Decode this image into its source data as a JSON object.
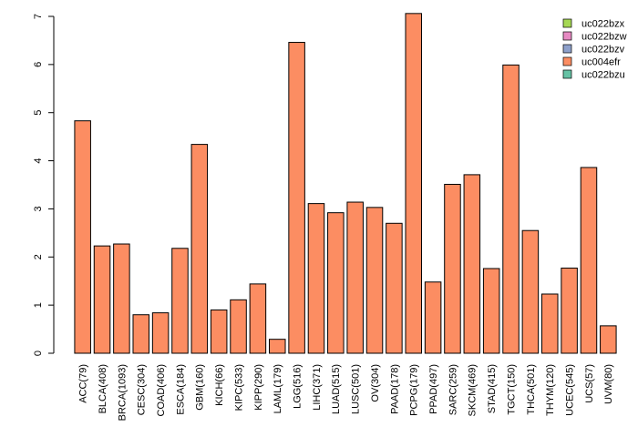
{
  "chart_data": {
    "type": "bar",
    "title": "",
    "xlabel": "",
    "ylabel": "",
    "ylim": [
      0,
      7
    ],
    "yticks": [
      0,
      1,
      2,
      3,
      4,
      5,
      6,
      7
    ],
    "grid": false,
    "legend_position": "top-right",
    "categories": [
      "ACC(79)",
      "BLCA(408)",
      "BRCA(1093)",
      "CESC(304)",
      "COAD(406)",
      "ESCA(184)",
      "GBM(160)",
      "KICH(66)",
      "KIPC(533)",
      "KIPP(290)",
      "LAML(179)",
      "LGG(516)",
      "LIHC(371)",
      "LUAD(515)",
      "LUSC(501)",
      "OV(304)",
      "PAAD(178)",
      "PCPG(179)",
      "PPAD(497)",
      "SARC(259)",
      "SKCM(469)",
      "STAD(415)",
      "TGCT(150)",
      "THCA(501)",
      "THYM(120)",
      "UCEC(545)",
      "UCS(57)",
      "UVM(80)"
    ],
    "series": [
      {
        "name": "uc022bzx",
        "color": "#a6d854",
        "values": [
          0,
          0,
          0,
          0,
          0,
          0,
          0,
          0,
          0,
          0,
          0,
          0,
          0,
          0,
          0,
          0,
          0,
          0,
          0,
          0,
          0,
          0,
          0,
          0,
          0,
          0,
          0,
          0
        ]
      },
      {
        "name": "uc022bzw",
        "color": "#e78ac3",
        "values": [
          0,
          0,
          0,
          0,
          0,
          0,
          0,
          0,
          0,
          0,
          0,
          0,
          0,
          0,
          0,
          0,
          0,
          0,
          0,
          0,
          0,
          0,
          0,
          0,
          0,
          0,
          0,
          0
        ]
      },
      {
        "name": "uc022bzv",
        "color": "#8da0cb",
        "values": [
          0,
          0,
          0,
          0,
          0,
          0,
          0,
          0,
          0,
          0,
          0,
          0,
          0,
          0,
          0,
          0,
          0,
          0,
          0,
          0,
          0,
          0,
          0,
          0,
          0,
          0,
          0,
          0
        ]
      },
      {
        "name": "uc004efr",
        "color": "#fc8d62",
        "values": [
          4.83,
          2.23,
          2.27,
          0.8,
          0.84,
          2.18,
          4.34,
          0.9,
          1.11,
          1.44,
          0.29,
          6.46,
          3.11,
          2.92,
          3.14,
          3.03,
          2.7,
          7.06,
          1.48,
          3.51,
          3.71,
          1.76,
          5.99,
          2.55,
          1.23,
          1.77,
          3.86,
          0.57
        ]
      },
      {
        "name": "uc022bzu",
        "color": "#66c2a5",
        "values": [
          0,
          0,
          0,
          0,
          0,
          0,
          0,
          0,
          0,
          0,
          0,
          0,
          0,
          0,
          0,
          0,
          0,
          0,
          0,
          0,
          0,
          0,
          0,
          0,
          0,
          0,
          0,
          0
        ]
      }
    ]
  }
}
